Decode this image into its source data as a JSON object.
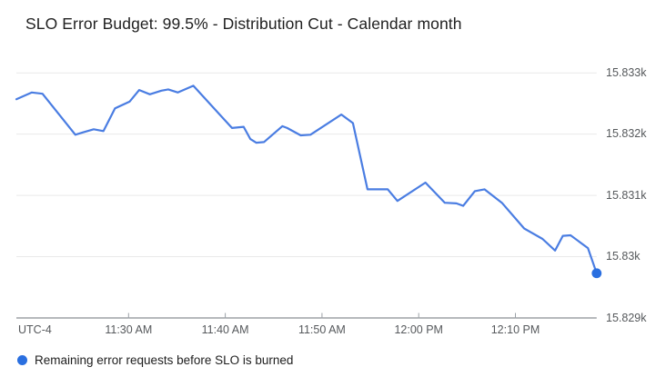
{
  "header": {
    "title": "SLO Error Budget: 99.5% - Distribution Cut - Calendar month"
  },
  "legend": {
    "label": "Remaining error requests before SLO is burned"
  },
  "colors": {
    "background": "#ffffff",
    "line": "#4a7de2",
    "end_dot": "#2a6fe0",
    "legend_dot": "#2a6fe0",
    "grid": "#e9e9e9",
    "axis": "#8a8f94",
    "tick": "#9aa0a6",
    "axis_text": "#56595c",
    "title_text": "#1f1f1f",
    "legend_text": "#1e1e1e"
  },
  "chart_data": {
    "type": "line",
    "title": "SLO Error Budget: 99.5% - Distribution Cut - Calendar month",
    "timezone_label": "UTC-4",
    "x_description": "time of day (UTC-4); t = minutes since ~11:18 AM; ticks every 10 minutes",
    "ylabel": "remaining error requests",
    "xlim": [
      0,
      60
    ],
    "ylim": [
      15829,
      15833.3
    ],
    "grid": "horizontal-only",
    "legend_position": "bottom-left",
    "xticks": [
      {
        "t": 11.6,
        "label": "11:30 AM"
      },
      {
        "t": 21.6,
        "label": "11:40 AM"
      },
      {
        "t": 31.6,
        "label": "11:50 AM"
      },
      {
        "t": 41.6,
        "label": "12:00 PM"
      },
      {
        "t": 51.6,
        "label": "12:10 PM"
      }
    ],
    "yticks": [
      {
        "value": 15833,
        "label": "15.833k"
      },
      {
        "value": 15832,
        "label": "15.832k"
      },
      {
        "value": 15831,
        "label": "15.831k"
      },
      {
        "value": 15830,
        "label": "15.83k"
      },
      {
        "value": 15829,
        "label": "15.829k"
      }
    ],
    "series": [
      {
        "name": "Remaining error requests before SLO is burned",
        "end_marker": "filled-circle",
        "points": [
          [
            0,
            15832.57
          ],
          [
            1.6,
            15832.68
          ],
          [
            2.7,
            15832.66
          ],
          [
            6.1,
            15831.99
          ],
          [
            6.9,
            15832.03
          ],
          [
            8.0,
            15832.08
          ],
          [
            9.0,
            15832.05
          ],
          [
            10.2,
            15832.42
          ],
          [
            11.7,
            15832.53
          ],
          [
            12.7,
            15832.72
          ],
          [
            13.8,
            15832.65
          ],
          [
            15.0,
            15832.71
          ],
          [
            15.7,
            15832.73
          ],
          [
            16.7,
            15832.68
          ],
          [
            18.3,
            15832.79
          ],
          [
            22.3,
            15832.1
          ],
          [
            23.5,
            15832.12
          ],
          [
            24.2,
            15831.92
          ],
          [
            24.8,
            15831.86
          ],
          [
            25.6,
            15831.87
          ],
          [
            27.5,
            15832.13
          ],
          [
            28.0,
            15832.1
          ],
          [
            29.4,
            15831.98
          ],
          [
            30.4,
            15831.99
          ],
          [
            33.6,
            15832.32
          ],
          [
            34.8,
            15832.18
          ],
          [
            36.3,
            15831.1
          ],
          [
            38.4,
            15831.1
          ],
          [
            39.4,
            15830.91
          ],
          [
            42.3,
            15831.21
          ],
          [
            44.3,
            15830.88
          ],
          [
            45.5,
            15830.87
          ],
          [
            46.2,
            15830.83
          ],
          [
            47.4,
            15831.07
          ],
          [
            48.4,
            15831.1
          ],
          [
            50.2,
            15830.88
          ],
          [
            52.5,
            15830.46
          ],
          [
            54.4,
            15830.29
          ],
          [
            55.7,
            15830.1
          ],
          [
            56.5,
            15830.34
          ],
          [
            57.3,
            15830.35
          ],
          [
            59.1,
            15830.14
          ],
          [
            60,
            15829.73
          ]
        ]
      }
    ]
  }
}
